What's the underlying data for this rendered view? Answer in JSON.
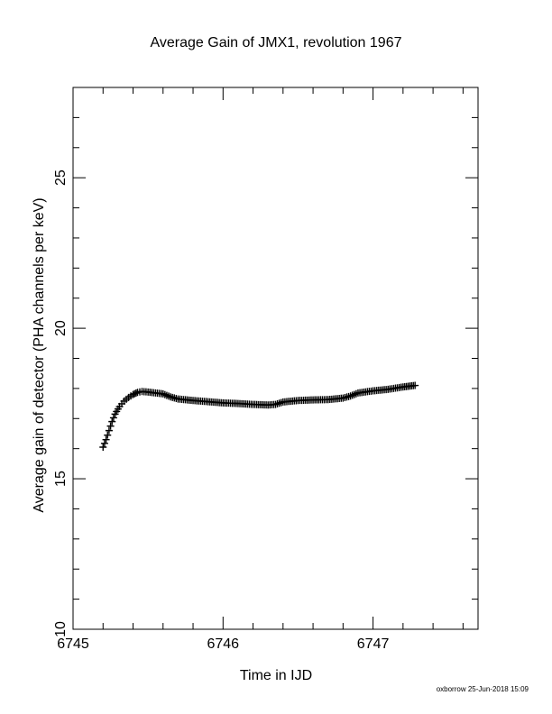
{
  "footer": "oxborrow 25-Jun-2018 15:09",
  "chart_data": {
    "type": "scatter",
    "title": "Average Gain of JMX1, revolution 1967",
    "xlabel": "Time in IJD",
    "ylabel": "Average gain of detector (PHA channels per keV)",
    "xlim": [
      6745.0,
      6747.7
    ],
    "ylim": [
      10,
      28
    ],
    "x_ticks": [
      6745,
      6746,
      6747
    ],
    "y_ticks": [
      10,
      15,
      20,
      25
    ],
    "grid": false,
    "marker": "plus",
    "marker_color": "#000000",
    "points": [
      [
        6745.2,
        16.05
      ],
      [
        6745.22,
        16.3
      ],
      [
        6745.24,
        16.6
      ],
      [
        6745.26,
        16.9
      ],
      [
        6745.28,
        17.15
      ],
      [
        6745.31,
        17.4
      ],
      [
        6745.34,
        17.58
      ],
      [
        6745.37,
        17.7
      ],
      [
        6745.4,
        17.8
      ],
      [
        6745.43,
        17.87
      ],
      [
        6745.46,
        17.9
      ],
      [
        6745.5,
        17.88
      ],
      [
        6745.55,
        17.85
      ],
      [
        6745.6,
        17.82
      ],
      [
        6745.65,
        17.72
      ],
      [
        6745.7,
        17.65
      ],
      [
        6745.8,
        17.6
      ],
      [
        6745.9,
        17.56
      ],
      [
        6746.0,
        17.52
      ],
      [
        6746.1,
        17.5
      ],
      [
        6746.2,
        17.47
      ],
      [
        6746.3,
        17.45
      ],
      [
        6746.35,
        17.47
      ],
      [
        6746.4,
        17.55
      ],
      [
        6746.5,
        17.6
      ],
      [
        6746.6,
        17.62
      ],
      [
        6746.7,
        17.63
      ],
      [
        6746.8,
        17.68
      ],
      [
        6746.85,
        17.75
      ],
      [
        6746.9,
        17.85
      ],
      [
        6747.0,
        17.92
      ],
      [
        6747.1,
        17.97
      ],
      [
        6747.2,
        18.05
      ],
      [
        6747.28,
        18.1
      ]
    ]
  }
}
